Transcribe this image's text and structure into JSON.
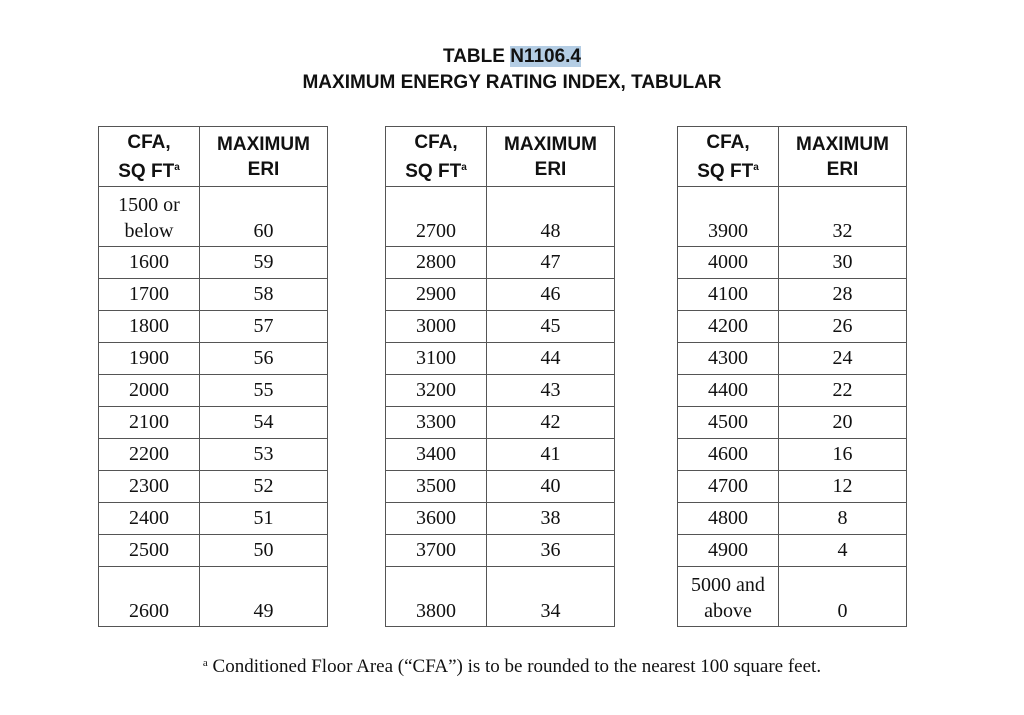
{
  "title": {
    "prefix": "TABLE ",
    "number": "N1106.4",
    "subtitle": "MAXIMUM ENERGY RATING INDEX, TABULAR"
  },
  "highlight_color": "#b4cde4",
  "headers": {
    "cfa_line1": "CFA,",
    "cfa_line2": "SQ FT",
    "cfa_sup": "a",
    "eri_line1": "MAXIMUM",
    "eri_line2": "ERI"
  },
  "tables": [
    {
      "rows": [
        [
          "1500 or below",
          "60"
        ],
        [
          "1600",
          "59"
        ],
        [
          "1700",
          "58"
        ],
        [
          "1800",
          "57"
        ],
        [
          "1900",
          "56"
        ],
        [
          "2000",
          "55"
        ],
        [
          "2100",
          "54"
        ],
        [
          "2200",
          "53"
        ],
        [
          "2300",
          "52"
        ],
        [
          "2400",
          "51"
        ],
        [
          "2500",
          "50"
        ],
        [
          "2600",
          "49"
        ]
      ]
    },
    {
      "rows": [
        [
          "2700",
          "48"
        ],
        [
          "2800",
          "47"
        ],
        [
          "2900",
          "46"
        ],
        [
          "3000",
          "45"
        ],
        [
          "3100",
          "44"
        ],
        [
          "3200",
          "43"
        ],
        [
          "3300",
          "42"
        ],
        [
          "3400",
          "41"
        ],
        [
          "3500",
          "40"
        ],
        [
          "3600",
          "38"
        ],
        [
          "3700",
          "36"
        ],
        [
          "3800",
          "34"
        ]
      ]
    },
    {
      "rows": [
        [
          "3900",
          "32"
        ],
        [
          "4000",
          "30"
        ],
        [
          "4100",
          "28"
        ],
        [
          "4200",
          "26"
        ],
        [
          "4300",
          "24"
        ],
        [
          "4400",
          "22"
        ],
        [
          "4500",
          "20"
        ],
        [
          "4600",
          "16"
        ],
        [
          "4700",
          "12"
        ],
        [
          "4800",
          "8"
        ],
        [
          "4900",
          "4"
        ],
        [
          "5000 and above",
          "0"
        ]
      ]
    }
  ],
  "footnote": {
    "marker": "a",
    "text": " Conditioned Floor Area (“CFA”) is to be rounded to the nearest 100 square feet."
  }
}
